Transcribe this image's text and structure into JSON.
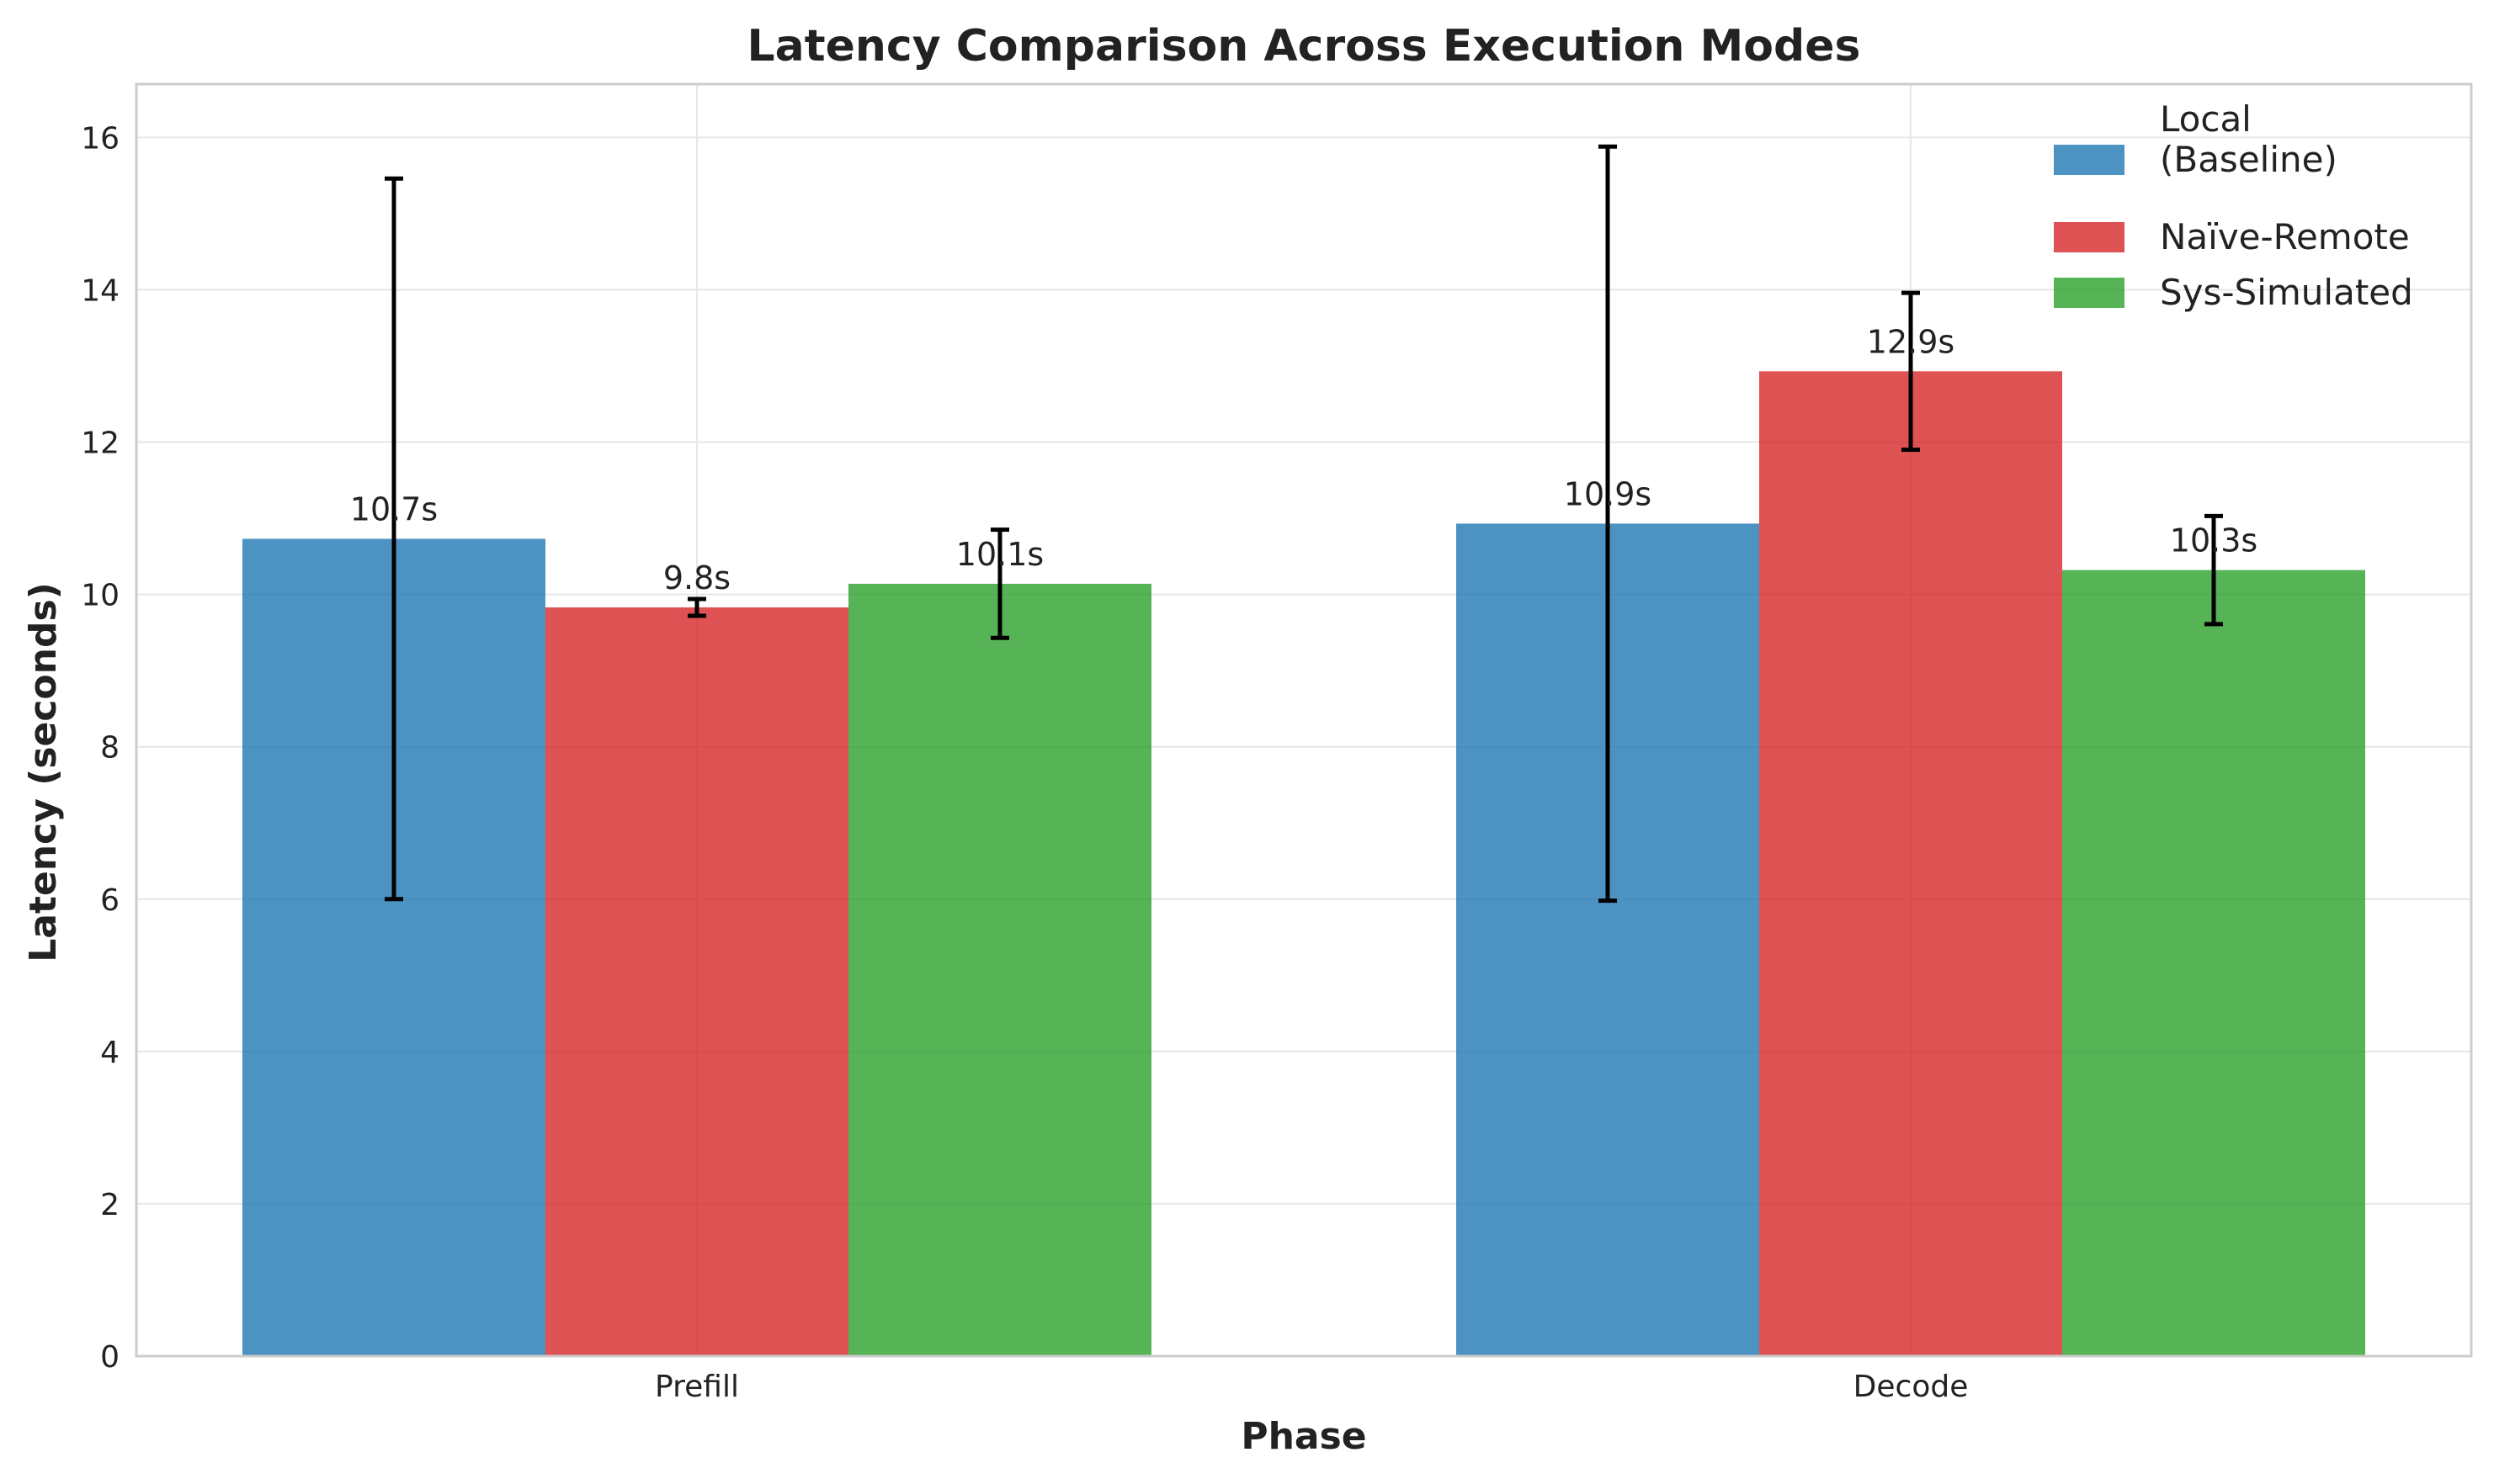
{
  "chart_data": {
    "type": "bar",
    "title": "Latency Comparison Across Execution Modes",
    "xlabel": "Phase",
    "ylabel": "Latency (seconds)",
    "categories": [
      "Prefill",
      "Decode"
    ],
    "ylim": [
      0,
      16.7
    ],
    "yticks": [
      0,
      2,
      4,
      6,
      8,
      10,
      12,
      14,
      16
    ],
    "grid": true,
    "legend_position": "top-right",
    "value_suffix": "s",
    "series": [
      {
        "name": "Local\n(Baseline)",
        "color": "#1f77b4",
        "values": [
          10.73,
          10.93
        ],
        "value_labels": [
          "10.7s",
          "10.9s"
        ],
        "error": [
          4.73,
          4.95
        ]
      },
      {
        "name": "Naïve-Remote",
        "color": "#d62728",
        "values": [
          9.83,
          12.93
        ],
        "value_labels": [
          "9.8s",
          "12.9s"
        ],
        "error": [
          0.11,
          1.03
        ]
      },
      {
        "name": "Sys-Simulated",
        "color": "#2ca02c",
        "values": [
          10.14,
          10.32
        ],
        "value_labels": [
          "10.1s",
          "10.3s"
        ],
        "error": [
          0.71,
          0.71
        ]
      }
    ]
  }
}
